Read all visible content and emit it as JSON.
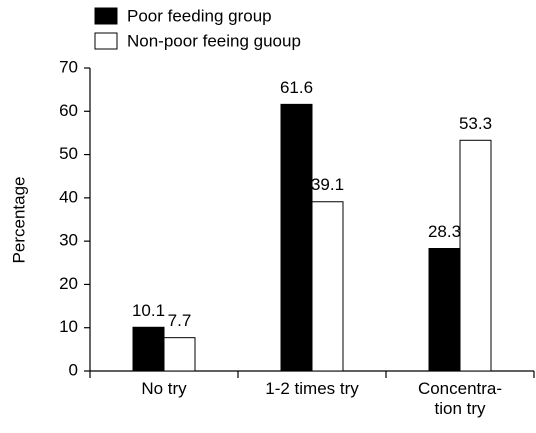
{
  "chart_data": {
    "type": "bar",
    "y_label": "Percentage",
    "categories": [
      "No try",
      "1-2 times try",
      "Concentra-\ntion try"
    ],
    "series": [
      {
        "name": "Poor feeding group",
        "color": "#000000",
        "values": [
          10.1,
          61.6,
          28.3
        ]
      },
      {
        "name": "Non-poor feeing guoup",
        "color": "#ffffff",
        "values": [
          7.7,
          39.1,
          53.3
        ]
      }
    ],
    "ylim": [
      0,
      70
    ],
    "yticks": [
      0,
      10,
      20,
      30,
      40,
      50,
      60,
      70
    ],
    "legend": "top-left"
  }
}
